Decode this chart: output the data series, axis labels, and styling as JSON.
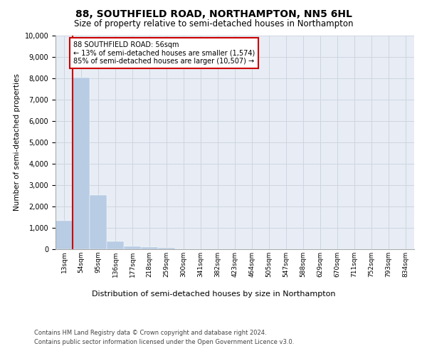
{
  "title": "88, SOUTHFIELD ROAD, NORTHAMPTON, NN5 6HL",
  "subtitle": "Size of property relative to semi-detached houses in Northampton",
  "xlabel_bottom": "Distribution of semi-detached houses by size in Northampton",
  "ylabel": "Number of semi-detached properties",
  "footer_line1": "Contains HM Land Registry data © Crown copyright and database right 2024.",
  "footer_line2": "Contains public sector information licensed under the Open Government Licence v3.0.",
  "categories": [
    "13sqm",
    "54sqm",
    "95sqm",
    "136sqm",
    "177sqm",
    "218sqm",
    "259sqm",
    "300sqm",
    "341sqm",
    "382sqm",
    "423sqm",
    "464sqm",
    "505sqm",
    "547sqm",
    "588sqm",
    "629sqm",
    "670sqm",
    "711sqm",
    "752sqm",
    "793sqm",
    "834sqm"
  ],
  "values": [
    1340,
    8020,
    2550,
    380,
    130,
    90,
    80,
    0,
    0,
    0,
    0,
    0,
    0,
    0,
    0,
    0,
    0,
    0,
    0,
    0,
    0
  ],
  "bar_color": "#b8cce4",
  "bar_edge_color": "#b8cce4",
  "property_line_color": "#cc0000",
  "annotation_box_text": "88 SOUTHFIELD ROAD: 56sqm\n← 13% of semi-detached houses are smaller (1,574)\n85% of semi-detached houses are larger (10,507) →",
  "annotation_box_color": "#cc0000",
  "ylim": [
    0,
    10000
  ],
  "yticks": [
    0,
    1000,
    2000,
    3000,
    4000,
    5000,
    6000,
    7000,
    8000,
    9000,
    10000
  ],
  "grid_color": "#cdd5e0",
  "background_color": "#e8edf5",
  "title_fontsize": 10,
  "subtitle_fontsize": 8.5
}
